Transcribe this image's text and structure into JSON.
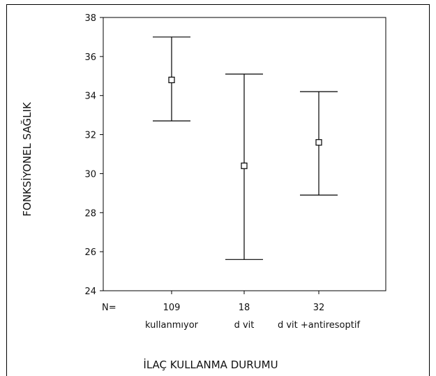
{
  "chart_data": {
    "type": "errorbar",
    "xlabel": "İLAÇ KULLANMA DURUMU",
    "ylabel": "FONKSİYONEL SAĞLIK",
    "ylim": [
      24,
      38
    ],
    "yticks": [
      24,
      26,
      28,
      30,
      32,
      34,
      36,
      38
    ],
    "n_label": "N=",
    "grid": false,
    "categories": [
      "kullanmıyor",
      "d vit",
      "d vit +antiresoptif"
    ],
    "n": [
      "109",
      "18",
      "32"
    ],
    "mean": [
      34.8,
      30.4,
      31.6
    ],
    "lower": [
      32.7,
      25.6,
      28.9
    ],
    "upper": [
      37.0,
      35.1,
      34.2
    ]
  }
}
